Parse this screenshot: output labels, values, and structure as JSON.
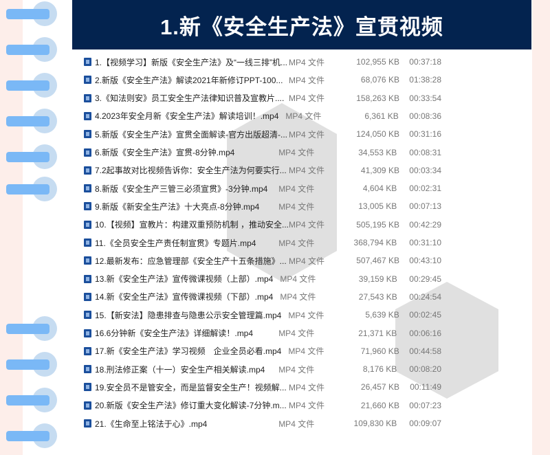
{
  "title": "1.新《安全生产法》宣贯视频",
  "files": [
    {
      "name": "1.【视频学习】新版《安全生产法》及“一线三排”机...",
      "type": "MP4 文件",
      "size": "102,955 KB",
      "duration": "00:37:18"
    },
    {
      "name": "2.新版《安全生产法》解读2021年新修订PPT-100...",
      "type": "MP4 文件",
      "size": "68,076 KB",
      "duration": "01:38:28"
    },
    {
      "name": "3.《知法则安》员工安全生产法律知识普及宣教片....",
      "type": "MP4 文件",
      "size": "158,263 KB",
      "duration": "00:33:54"
    },
    {
      "name": "4.2023年安全月新《安全生产法》解读培训！.mp4",
      "type": "MP4 文件",
      "size": "6,361 KB",
      "duration": "00:08:36"
    },
    {
      "name": "5.新版《安全生产法》宣贯全面解读-官方出版超清-...",
      "type": "MP4 文件",
      "size": "124,050 KB",
      "duration": "00:31:16"
    },
    {
      "name": "6.新版《安全生产法》宣贯-8分钟.mp4",
      "type": "MP4 文件",
      "size": "34,553 KB",
      "duration": "00:08:31"
    },
    {
      "name": "7.2起事故对比视频告诉你：安全生产法为何要实行...",
      "type": "MP4 文件",
      "size": "41,309 KB",
      "duration": "00:03:34"
    },
    {
      "name": "8.新版《安全生产三管三必须宣贯》-3分钟.mp4",
      "type": "MP4 文件",
      "size": "4,604 KB",
      "duration": "00:02:31"
    },
    {
      "name": "9.新版《新安全生产法》十大亮点-8分钟.mp4",
      "type": "MP4 文件",
      "size": "13,005 KB",
      "duration": "00:07:13"
    },
    {
      "name": "10.【视频】宣教片：构建双重预防机制 ，推动安全...",
      "type": "MP4 文件",
      "size": "505,195 KB",
      "duration": "00:42:29"
    },
    {
      "name": "11.《全员安全生产责任制宣贯》专题片.mp4",
      "type": "MP4 文件",
      "size": "368,794 KB",
      "duration": "00:31:10"
    },
    {
      "name": "12.最新发布：应急管理部《安全生产十五条措施》...",
      "type": "MP4 文件",
      "size": "507,467 KB",
      "duration": "00:43:10"
    },
    {
      "name": "13.新《安全生产法》宣传微课视频（上部）.mp4",
      "type": "MP4 文件",
      "size": "39,159 KB",
      "duration": "00:29:45"
    },
    {
      "name": "14.新《安全生产法》宣传微课视频（下部）.mp4",
      "type": "MP4 文件",
      "size": "27,543 KB",
      "duration": "00:24:54"
    },
    {
      "name": "15.【新安法】隐患排查与隐患公示安全管理篇.mp4",
      "type": "MP4 文件",
      "size": "5,639 KB",
      "duration": "00:02:45"
    },
    {
      "name": "16.6分钟新《安全生产法》详细解读！.mp4",
      "type": "MP4 文件",
      "size": "21,371 KB",
      "duration": "00:06:16"
    },
    {
      "name": "17.新《安全生产法》学习视频　企业全员必看.mp4",
      "type": "MP4 文件",
      "size": "71,960 KB",
      "duration": "00:44:58"
    },
    {
      "name": "18.刑法修正案（十一）安全生产相关解读.mp4",
      "type": "MP4 文件",
      "size": "8,176 KB",
      "duration": "00:08:20"
    },
    {
      "name": "19.安全员不是管安全，而是监督安全生产！视频解...",
      "type": "MP4 文件",
      "size": "26,457 KB",
      "duration": "00:11:49"
    },
    {
      "name": "20.新版《安全生产法》修订重大变化解读-7分钟.m...",
      "type": "MP4 文件",
      "size": "21,660 KB",
      "duration": "00:07:23"
    },
    {
      "name": "21.《生命至上铭法于心》.mp4",
      "type": "MP4 文件",
      "size": "109,830 KB",
      "duration": "00:09:07"
    }
  ],
  "colors": {
    "header": "#03234f",
    "background": "#fdeeea",
    "ring": "#7ab8f6",
    "file_icon": "#1b4f9c"
  }
}
